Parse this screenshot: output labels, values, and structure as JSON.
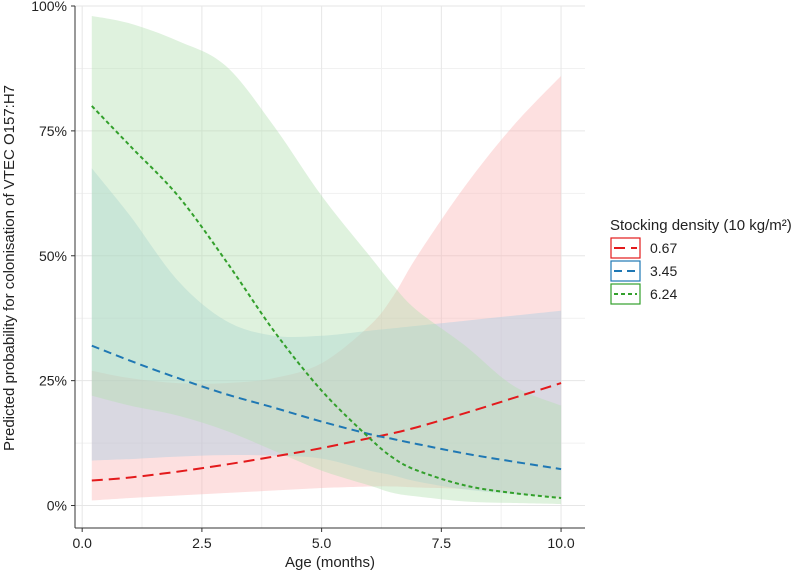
{
  "chart_data": {
    "type": "line",
    "xlabel": "Age (months)",
    "ylabel": "Predicted probability for colonisation of VTEC O157:H7",
    "xlim": [
      -0.15,
      10.5
    ],
    "ylim": [
      -0.045,
      1.0
    ],
    "x_ticks": [
      0,
      2.5,
      5,
      7.5,
      10
    ],
    "x_tick_labels": [
      "0.0",
      "2.5",
      "5.0",
      "7.5",
      "10.0"
    ],
    "y_ticks": [
      0,
      0.25,
      0.5,
      0.75,
      1.0
    ],
    "y_tick_labels": [
      "0%",
      "25%",
      "50%",
      "75%",
      "100%"
    ],
    "grid": true,
    "legend": {
      "title": "Stocking density (10 kg/m²)",
      "position": "right"
    },
    "x": [
      0.2,
      1,
      2,
      3,
      4,
      5,
      6,
      6.5,
      7,
      8,
      9,
      10
    ],
    "series": [
      {
        "name": "0.67",
        "color": "#e31a1c",
        "fill": "#fbb4b4",
        "dash": "long",
        "values": [
          0.05,
          0.056,
          0.068,
          0.082,
          0.098,
          0.115,
          0.135,
          0.145,
          0.157,
          0.185,
          0.215,
          0.245
        ],
        "lower": [
          0.01,
          0.015,
          0.02,
          0.025,
          0.03,
          0.035,
          0.038,
          0.038,
          0.036,
          0.033,
          0.025,
          0.015
        ],
        "upper": [
          0.27,
          0.255,
          0.245,
          0.245,
          0.255,
          0.285,
          0.36,
          0.42,
          0.5,
          0.64,
          0.76,
          0.86
        ]
      },
      {
        "name": "3.45",
        "color": "#1f78b4",
        "fill": "#a6cee3",
        "dash": "medium",
        "values": [
          0.32,
          0.29,
          0.255,
          0.223,
          0.196,
          0.168,
          0.143,
          0.133,
          0.123,
          0.104,
          0.088,
          0.073
        ],
        "lower": [
          0.09,
          0.093,
          0.098,
          0.101,
          0.1,
          0.094,
          0.07,
          0.06,
          0.048,
          0.032,
          0.023,
          0.017
        ],
        "upper": [
          0.675,
          0.58,
          0.45,
          0.37,
          0.34,
          0.34,
          0.35,
          0.355,
          0.36,
          0.37,
          0.38,
          0.39
        ]
      },
      {
        "name": "6.24",
        "color": "#33a02c",
        "fill": "#b2dfb0",
        "dash": "short",
        "values": [
          0.8,
          0.72,
          0.62,
          0.49,
          0.35,
          0.23,
          0.135,
          0.095,
          0.07,
          0.04,
          0.025,
          0.015
        ],
        "lower": [
          0.22,
          0.2,
          0.18,
          0.15,
          0.11,
          0.07,
          0.04,
          0.025,
          0.018,
          0.008,
          0.005,
          0.003
        ],
        "upper": [
          0.98,
          0.965,
          0.93,
          0.88,
          0.76,
          0.62,
          0.5,
          0.44,
          0.39,
          0.32,
          0.24,
          0.2
        ]
      }
    ]
  }
}
